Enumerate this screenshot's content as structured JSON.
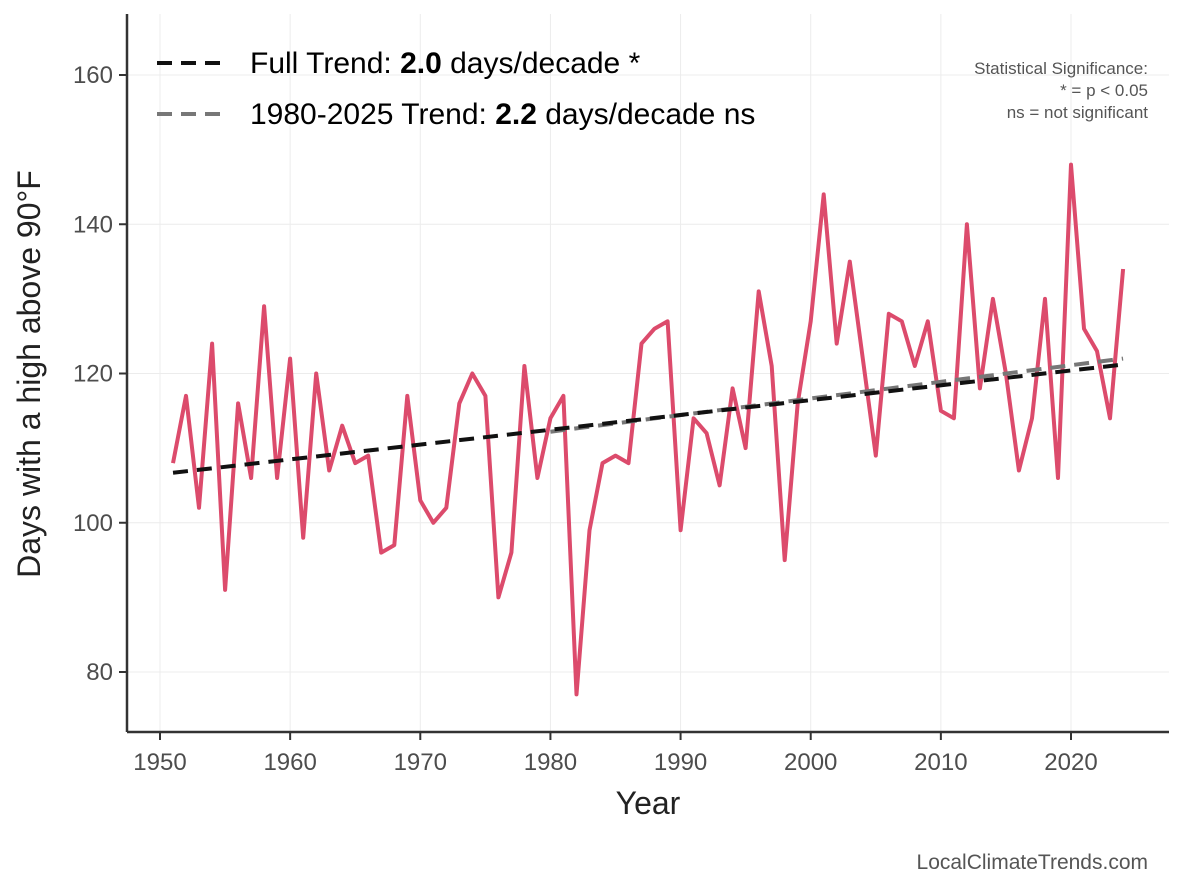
{
  "chart_data": {
    "type": "line",
    "title": "",
    "xlabel": "Year",
    "ylabel": "Days with a high above 90°F",
    "xlim": [
      1947.5,
      2027.5
    ],
    "ylim": [
      72,
      168
    ],
    "x_ticks": [
      1950,
      1960,
      1970,
      1980,
      1990,
      2000,
      2010,
      2020
    ],
    "y_ticks": [
      80,
      100,
      120,
      140,
      160
    ],
    "grid": true,
    "series": [
      {
        "name": "Days above 90°F",
        "color": "#dc4b6c",
        "x": [
          1951,
          1952,
          1953,
          1954,
          1955,
          1956,
          1957,
          1958,
          1959,
          1960,
          1961,
          1962,
          1963,
          1964,
          1965,
          1966,
          1967,
          1968,
          1969,
          1970,
          1971,
          1972,
          1973,
          1974,
          1975,
          1976,
          1977,
          1978,
          1979,
          1980,
          1981,
          1982,
          1983,
          1984,
          1985,
          1986,
          1987,
          1988,
          1989,
          1990,
          1991,
          1992,
          1993,
          1994,
          1995,
          1996,
          1997,
          1998,
          1999,
          2000,
          2001,
          2002,
          2003,
          2004,
          2005,
          2006,
          2007,
          2008,
          2009,
          2010,
          2011,
          2012,
          2013,
          2014,
          2015,
          2016,
          2017,
          2018,
          2019,
          2020,
          2021,
          2022,
          2023,
          2024
        ],
        "values": [
          108,
          117,
          102,
          124,
          91,
          116,
          106,
          129,
          106,
          122,
          98,
          120,
          107,
          113,
          108,
          109,
          96,
          97,
          117,
          103,
          100,
          102,
          116,
          120,
          117,
          90,
          96,
          121,
          106,
          114,
          117,
          77,
          99,
          108,
          109,
          108,
          124,
          126,
          127,
          99,
          114,
          112,
          105,
          118,
          110,
          131,
          121,
          95,
          116,
          127,
          144,
          124,
          135,
          122,
          109,
          128,
          127,
          121,
          127,
          115,
          114,
          140,
          118,
          130,
          120,
          107,
          114,
          130,
          106,
          148,
          126,
          123,
          114,
          134
        ]
      }
    ],
    "trends": [
      {
        "name": "Full Trend",
        "color": "#111111",
        "style": "dashed",
        "x": [
          1951,
          2024
        ],
        "y": [
          106.7,
          121.2
        ]
      },
      {
        "name": "1980-2025 Trend",
        "color": "#777777",
        "style": "dashed",
        "x": [
          1980,
          2024
        ],
        "y": [
          112.2,
          122.0
        ]
      }
    ]
  },
  "legend": {
    "full": {
      "prefix": "Full Trend: ",
      "value": "2.0",
      "suffix": " days/decade *"
    },
    "recent": {
      "prefix": "1980-2025 Trend: ",
      "value": "2.2",
      "suffix": " days/decade ns"
    }
  },
  "significance": {
    "title": "Statistical Significance:",
    "line1": "* = p < 0.05",
    "line2": "ns = not significant"
  },
  "caption": "LocalClimateTrends.com"
}
